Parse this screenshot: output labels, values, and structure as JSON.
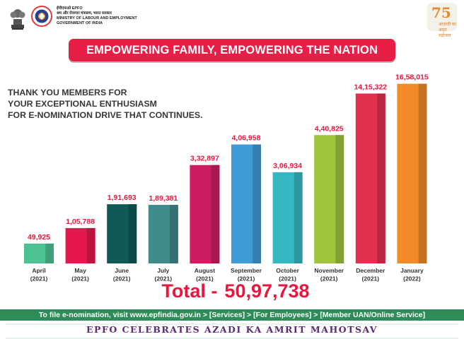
{
  "header": {
    "org_line1": "ईपीएफओ EPFO",
    "org_line2": "श्रम और रोजगार मंत्रालय, भारत सरकार",
    "org_line3": "MINISTRY OF LABOUR AND EMPLOYMENT",
    "org_line4": "GOVERNMENT OF INDIA",
    "amrit_num": "75",
    "amrit_text": "आज़ादी का अमृत महोत्सव"
  },
  "banner": {
    "text": "EMPOWERING FAMILY, EMPOWERING THE NATION"
  },
  "thanks": {
    "line1": "THANK YOU MEMBERS FOR",
    "line2": "YOUR EXCEPTIONAL ENTHUSIASM",
    "line3": "FOR E-NOMINATION DRIVE THAT CONTINUES."
  },
  "chart_data": {
    "type": "bar",
    "categories": [
      "April (2021)",
      "May (2021)",
      "June (2021)",
      "July (2021)",
      "August (2021)",
      "September (2021)",
      "October (2021)",
      "November (2021)",
      "December (2021)",
      "January (2022)"
    ],
    "category_lines": [
      [
        "April",
        "(2021)"
      ],
      [
        "May",
        "(2021)"
      ],
      [
        "June",
        "(2021)"
      ],
      [
        "July",
        "(2021)"
      ],
      [
        "August",
        "(2021)"
      ],
      [
        "September",
        "(2021)"
      ],
      [
        "October",
        "(2021)"
      ],
      [
        "November",
        "(2021)"
      ],
      [
        "December",
        "(2021)"
      ],
      [
        "January",
        "(2022)"
      ]
    ],
    "values": [
      49925,
      105788,
      191693,
      189381,
      332897,
      406958,
      306934,
      440825,
      1415322,
      1658015
    ],
    "value_labels": [
      "49,925",
      "1,05,788",
      "1,91,693",
      "1,89,381",
      "3,32,897",
      "4,06,958",
      "3,06,934",
      "4,40,825",
      "14,15,322",
      "16,58,015"
    ],
    "colors": [
      "#4cc292",
      "#e5174d",
      "#0f5a57",
      "#3f8a8b",
      "#cc1d62",
      "#3e9bd6",
      "#35b8c2",
      "#9fc43e",
      "#e0314f",
      "#f28a2a"
    ],
    "label_color": "#e9163e",
    "scale": "non-linear (pictorial)"
  },
  "total": {
    "label": "Total -",
    "value": "50,97,738"
  },
  "footer": {
    "instructions": "To file e-nomination, visit www.epfindia.gov.in > [Services] > [For Employees] > [Member UAN/Online Service]",
    "celebrates": "EPFO CELEBRATES AZADI KA AMRIT MAHOTSAV"
  }
}
